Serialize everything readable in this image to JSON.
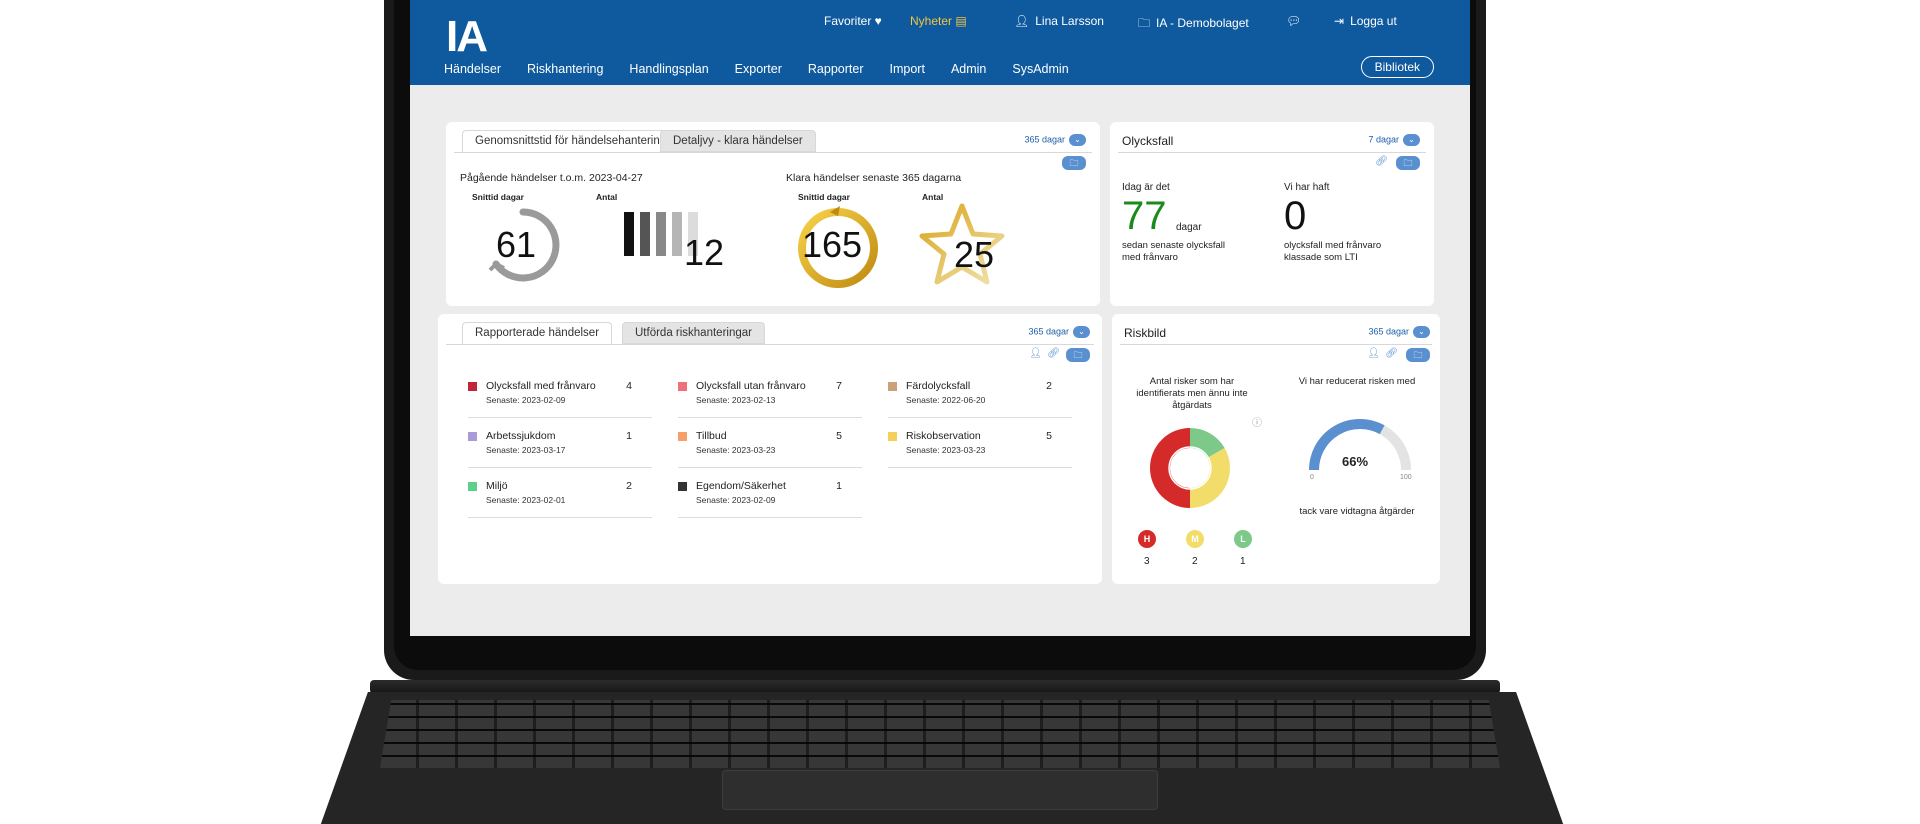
{
  "header": {
    "logo": "IA",
    "favorites": "Favoriter ♥",
    "news": "Nyheter",
    "user": "Lina Larsson",
    "company": "IA - Demobolaget",
    "logout": "Logga ut",
    "library_button": "Bibliotek",
    "colors": {
      "header_bg": "#0f5a9e",
      "news": "#f5c542"
    }
  },
  "nav": {
    "items": [
      "Händelser",
      "Riskhantering",
      "Handlingsplan",
      "Exporter",
      "Rapporter",
      "Import",
      "Admin",
      "SysAdmin"
    ]
  },
  "stats_card": {
    "tabs": [
      "Genomsnittstid för händelsehantering",
      "Detaljvy - klara händelser"
    ],
    "period": "365 dagar",
    "ongoing_title": "Pågående händelser t.o.m. 2023-04-27",
    "closed_title": "Klara händelser senaste 365 dagarna",
    "avg_days_label": "Snittid dagar",
    "count_label": "Antal",
    "ongoing_avg_days": "61",
    "ongoing_count": "12",
    "closed_avg_days": "165",
    "closed_count": "25"
  },
  "accident_card": {
    "title": "Olycksfall",
    "period": "7 dagar",
    "today_label": "Idag är det",
    "days_value": "77",
    "days_unit": "dagar",
    "days_desc_1": "sedan senaste olycksfall",
    "days_desc_2": "med frånvaro",
    "have_had_label": "Vi har haft",
    "lti_value": "0",
    "lti_desc_1": "olycksfall med frånvaro",
    "lti_desc_2": "klassade som LTI",
    "colors": {
      "days_value": "#1a8a1a"
    }
  },
  "reported_card": {
    "tabs": [
      "Rapporterade händelser",
      "Utförda riskhanteringar"
    ],
    "period": "365 dagar",
    "events": [
      {
        "name": "Olycksfall med frånvaro",
        "count": "4",
        "last": "Senaste: 2023-02-09",
        "color": "#c0253a"
      },
      {
        "name": "Olycksfall utan frånvaro",
        "count": "7",
        "last": "Senaste: 2023-02-13",
        "color": "#f0707a"
      },
      {
        "name": "Färdolycksfall",
        "count": "2",
        "last": "Senaste: 2022-06-20",
        "color": "#c9a27a"
      },
      {
        "name": "Arbetssjukdom",
        "count": "1",
        "last": "Senaste: 2023-03-17",
        "color": "#a99cd6"
      },
      {
        "name": "Tillbud",
        "count": "5",
        "last": "Senaste: 2023-03-23",
        "color": "#f5a06a"
      },
      {
        "name": "Riskobservation",
        "count": "5",
        "last": "Senaste: 2023-03-23",
        "color": "#f5cf5a"
      },
      {
        "name": "Miljö",
        "count": "2",
        "last": "Senaste: 2023-02-01",
        "color": "#5ccf8a"
      },
      {
        "name": "Egendom/Säkerhet",
        "count": "1",
        "last": "Senaste: 2023-02-09",
        "color": "#333333"
      }
    ]
  },
  "risk_card": {
    "title": "Riskbild",
    "period": "365 dagar",
    "unaddressed_label_1": "Antal risker som har",
    "unaddressed_label_2": "identifierats men ännu inte",
    "unaddressed_label_3": "åtgärdats",
    "reduced_label": "Vi har reducerat risken med",
    "reduced_percent": "66%",
    "reduced_fraction": 0.66,
    "gauge_min": "0",
    "gauge_max": "100",
    "thanks_label": "tack vare vidtagna åtgärder",
    "levels": [
      {
        "letter": "H",
        "count": "3",
        "color": "#d42a2a"
      },
      {
        "letter": "M",
        "count": "2",
        "color": "#f2dd6a"
      },
      {
        "letter": "L",
        "count": "1",
        "color": "#7cc98a"
      }
    ],
    "donut_values": [
      3,
      2,
      1
    ]
  }
}
